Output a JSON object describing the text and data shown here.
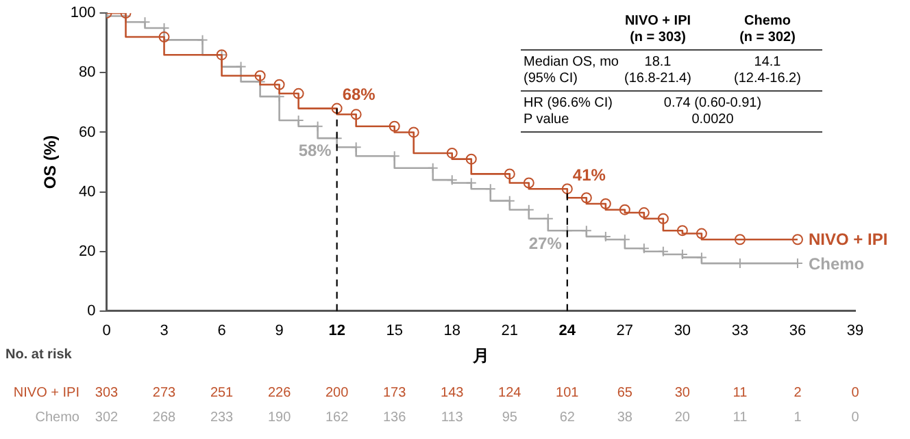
{
  "chart_data": {
    "type": "step",
    "xlabel": "月",
    "ylabel": "OS (%)",
    "xlim": [
      0,
      39
    ],
    "xticks": [
      0,
      3,
      6,
      9,
      12,
      15,
      18,
      21,
      24,
      27,
      30,
      33,
      36,
      39
    ],
    "ylim": [
      0,
      100
    ],
    "yticks": [
      0,
      20,
      40,
      60,
      80,
      100
    ],
    "grid": false,
    "legend": false,
    "line_style": "solid",
    "series": [
      {
        "name": "NIVO + IPI",
        "color": "#c0522b",
        "marker": "circle",
        "x": [
          0,
          1,
          3,
          6,
          8,
          9,
          10,
          12,
          13,
          15,
          16,
          18,
          19,
          21,
          22,
          24,
          25,
          26,
          27,
          28,
          29,
          30,
          31,
          33,
          36
        ],
        "values": [
          100,
          100,
          92,
          86,
          79,
          76,
          73,
          68,
          66,
          62,
          60,
          53,
          51,
          46,
          43,
          41,
          38,
          36,
          34,
          33,
          31,
          27,
          26,
          24,
          24
        ],
        "value_labels": [
          null,
          null,
          null,
          null,
          null,
          null,
          null,
          "68%",
          null,
          null,
          null,
          null,
          null,
          null,
          null,
          "41%",
          null,
          null,
          null,
          null,
          null,
          null,
          null,
          null,
          null
        ]
      },
      {
        "name": "Chemo",
        "color": "#a6a6a6",
        "marker": "cross",
        "x": [
          0,
          1,
          2,
          3,
          5,
          6,
          7,
          8,
          9,
          10,
          11,
          12,
          13,
          15,
          17,
          18,
          19,
          20,
          21,
          22,
          23,
          24,
          25,
          26,
          27,
          28,
          29,
          30,
          31,
          33,
          36
        ],
        "values": [
          100,
          99,
          97,
          95,
          91,
          86,
          82,
          77,
          72,
          64,
          62,
          58,
          55,
          52,
          48,
          44,
          43,
          41,
          37,
          34,
          31,
          27,
          27,
          25,
          24,
          21,
          20,
          19,
          18,
          16,
          16
        ],
        "value_labels": [
          null,
          null,
          null,
          null,
          null,
          null,
          null,
          null,
          null,
          null,
          null,
          "58%",
          null,
          null,
          null,
          null,
          null,
          null,
          null,
          null,
          null,
          "27%",
          null,
          null,
          null,
          null,
          null,
          null,
          null,
          null,
          null
        ]
      }
    ],
    "ref_lines": [
      {
        "axis": "x",
        "value": 12,
        "color": "#000000",
        "line_style": "dashed"
      },
      {
        "axis": "x",
        "value": 24,
        "color": "#000000",
        "line_style": "dashed"
      }
    ],
    "annotations": [
      "(n = 303)",
      "(n = 302)",
      "Median OS, mo",
      "(95% CI)",
      "18.1",
      "(16.8-21.4)",
      "14.1",
      "(12.4-16.2)",
      "HR (96.6% CI)",
      "P value",
      "0.74 (0.60-0.91)",
      "0.0020",
      "No. at risk",
      "303 273 251 226 200 173 143 124 101 65 30 11 2 0",
      "302 268 233 190 162 136 113 95 62 38 20 11 1 0"
    ]
  }
}
